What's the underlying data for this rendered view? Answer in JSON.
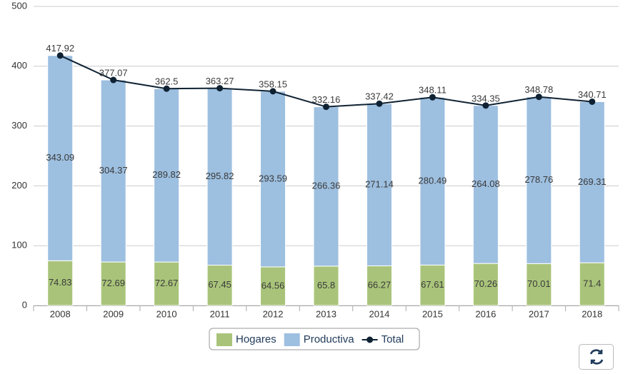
{
  "chart_data": {
    "type": "bar",
    "stacked": true,
    "categories": [
      "2008",
      "2009",
      "2010",
      "2011",
      "2012",
      "2013",
      "2014",
      "2015",
      "2016",
      "2017",
      "2018"
    ],
    "series": [
      {
        "name": "Hogares",
        "type": "bar",
        "color": "#a9c47a",
        "values": [
          74.83,
          72.69,
          72.67,
          67.45,
          64.56,
          65.8,
          66.27,
          67.61,
          70.26,
          70.01,
          71.4
        ]
      },
      {
        "name": "Productiva",
        "type": "bar",
        "color": "#9dbfe0",
        "values": [
          343.09,
          304.37,
          289.82,
          295.82,
          293.59,
          266.36,
          271.14,
          280.49,
          264.08,
          278.76,
          269.31
        ]
      },
      {
        "name": "Total",
        "type": "line",
        "color": "#0f2233",
        "values": [
          417.92,
          377.07,
          362.5,
          363.27,
          358.15,
          332.16,
          337.42,
          348.11,
          334.35,
          348.78,
          340.71
        ]
      }
    ],
    "ylim": [
      0,
      500
    ],
    "yticks": [
      0,
      100,
      200,
      300,
      400,
      500
    ],
    "grid": true,
    "legend": "bottom"
  }
}
